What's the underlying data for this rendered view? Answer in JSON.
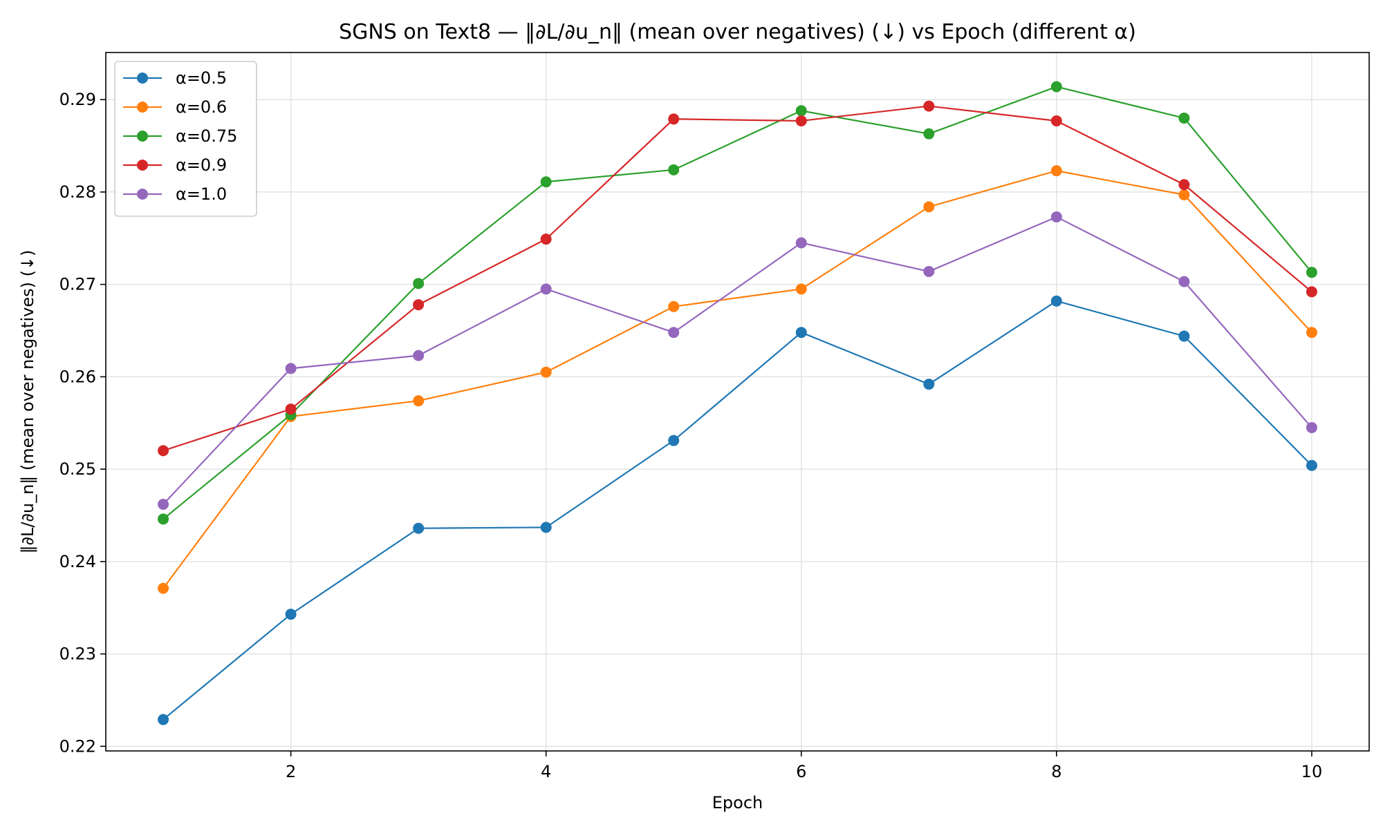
{
  "chart_data": {
    "type": "line",
    "title": "SGNS on Text8 — ‖∂L/∂u_n‖ (mean over negatives) (↓) vs Epoch (different α)",
    "xlabel": "Epoch",
    "ylabel": "‖∂L/∂u_n‖ (mean over negatives) (↓)",
    "xlim": [
      0.55,
      10.45
    ],
    "ylim": [
      0.2195,
      0.2951
    ],
    "x_ticks": [
      "2",
      "4",
      "6",
      "8",
      "10"
    ],
    "x_tick_values": [
      2,
      4,
      6,
      8,
      10
    ],
    "y_ticks": [
      "0.22",
      "0.23",
      "0.24",
      "0.25",
      "0.26",
      "0.27",
      "0.28",
      "0.29"
    ],
    "y_tick_values": [
      0.22,
      0.23,
      0.24,
      0.25,
      0.26,
      0.27,
      0.28,
      0.29
    ],
    "grid": true,
    "legend_position": "top-left",
    "x": [
      1,
      2,
      3,
      4,
      5,
      6,
      7,
      8,
      9,
      10
    ],
    "series": [
      {
        "name": "α=0.5",
        "color": "#1f77b4",
        "values": [
          0.2229,
          0.2343,
          0.2436,
          0.2437,
          0.2531,
          0.2648,
          0.2592,
          0.2682,
          0.2644,
          0.2504
        ]
      },
      {
        "name": "α=0.6",
        "color": "#ff7f0e",
        "values": [
          0.2371,
          0.2557,
          0.2574,
          0.2605,
          0.2676,
          0.2695,
          0.2784,
          0.2823,
          0.2797,
          0.2648
        ]
      },
      {
        "name": "α=0.75",
        "color": "#2ca02c",
        "values": [
          0.2446,
          0.2559,
          0.2701,
          0.2811,
          0.2824,
          0.2888,
          0.2863,
          0.2914,
          0.288,
          0.2713
        ]
      },
      {
        "name": "α=0.9",
        "color": "#d62728",
        "values": [
          0.252,
          0.2565,
          0.2678,
          0.2749,
          0.2879,
          0.2877,
          0.2893,
          0.2877,
          0.2808,
          0.2692
        ]
      },
      {
        "name": "α=1.0",
        "color": "#9467bd",
        "values": [
          0.2462,
          0.2609,
          0.2623,
          0.2695,
          0.2648,
          0.2745,
          0.2714,
          0.2773,
          0.2703,
          0.2545
        ]
      }
    ]
  }
}
